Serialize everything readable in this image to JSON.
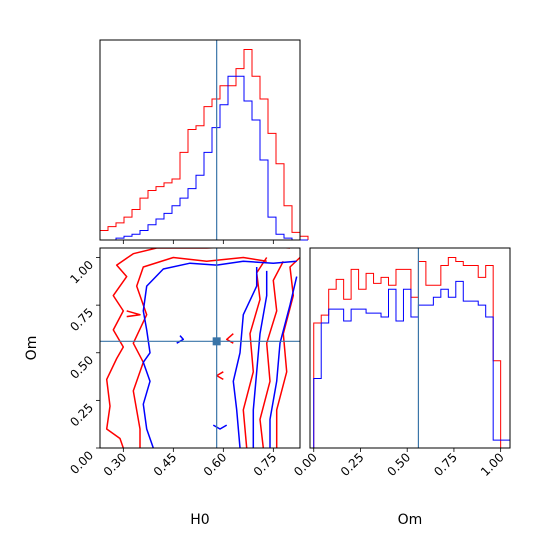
{
  "chart_data": [
    {
      "panel": "H0 marginal",
      "type": "histogram",
      "truth_value": 0.58,
      "series": [
        {
          "color": "#ff0000",
          "bin_edges": [
            0.23,
            0.254,
            0.278,
            0.302,
            0.326,
            0.35,
            0.374,
            0.398,
            0.422,
            0.446,
            0.47,
            0.494,
            0.518,
            0.542,
            0.566,
            0.59,
            0.614,
            0.638,
            0.662,
            0.686,
            0.71,
            0.734,
            0.758,
            0.782,
            0.806,
            0.83,
            0.854
          ],
          "counts": [
            0.05,
            0.07,
            0.09,
            0.12,
            0.16,
            0.22,
            0.26,
            0.28,
            0.3,
            0.32,
            0.46,
            0.58,
            0.6,
            0.7,
            0.74,
            0.81,
            0.81,
            0.9,
            1.0,
            0.86,
            0.74,
            0.56,
            0.4,
            0.18,
            0.04,
            0.02
          ]
        },
        {
          "color": "#0000ff",
          "bin_edges": [
            0.23,
            0.254,
            0.278,
            0.302,
            0.326,
            0.35,
            0.374,
            0.398,
            0.422,
            0.446,
            0.47,
            0.494,
            0.518,
            0.542,
            0.566,
            0.59,
            0.614,
            0.638,
            0.662,
            0.686,
            0.71,
            0.734,
            0.758,
            0.782,
            0.806,
            0.83,
            0.854
          ],
          "counts": [
            0.0,
            0.0,
            0.01,
            0.02,
            0.03,
            0.05,
            0.08,
            0.11,
            0.14,
            0.18,
            0.22,
            0.27,
            0.34,
            0.46,
            0.59,
            0.71,
            0.86,
            0.86,
            0.73,
            0.63,
            0.42,
            0.12,
            0.03,
            0.01,
            0.0,
            0.0
          ]
        }
      ]
    },
    {
      "panel": "H0 vs Om",
      "type": "contour",
      "xlabel": "H0",
      "ylabel": "Om",
      "xlim": [
        0.23,
        0.83
      ],
      "ylim": [
        0.0,
        1.05
      ],
      "x_ticks": [
        "0.30",
        "0.45",
        "0.60",
        "0.75"
      ],
      "x_tick_values": [
        0.3,
        0.45,
        0.6,
        0.75
      ],
      "y_ticks": [
        "0.00",
        "0.25",
        "0.50",
        "0.75",
        "1.00"
      ],
      "y_tick_values": [
        0.0,
        0.25,
        0.5,
        0.75,
        1.0
      ],
      "truth": [
        0.58,
        0.56
      ],
      "series": [
        {
          "color": "#ff0000",
          "contours": [
            [
              [
                0.3,
                0.0
              ],
              [
                0.29,
                0.05
              ],
              [
                0.25,
                0.1
              ],
              [
                0.26,
                0.22
              ],
              [
                0.25,
                0.36
              ],
              [
                0.28,
                0.47
              ],
              [
                0.3,
                0.53
              ],
              [
                0.27,
                0.62
              ],
              [
                0.3,
                0.72
              ],
              [
                0.27,
                0.8
              ],
              [
                0.31,
                0.9
              ],
              [
                0.28,
                0.96
              ],
              [
                0.33,
                1.02
              ],
              [
                0.4,
                1.05
              ],
              [
                0.55,
                1.05
              ],
              [
                0.7,
                1.06
              ],
              [
                0.8,
                1.05
              ]
            ],
            [
              [
                0.35,
                0.0
              ],
              [
                0.35,
                0.1
              ],
              [
                0.33,
                0.3
              ],
              [
                0.36,
                0.45
              ],
              [
                0.33,
                0.55
              ],
              [
                0.37,
                0.7
              ],
              [
                0.34,
                0.85
              ],
              [
                0.36,
                0.95
              ],
              [
                0.45,
                1.0
              ],
              [
                0.55,
                0.98
              ],
              [
                0.66,
                1.0
              ],
              [
                0.73,
                0.98
              ]
            ],
            [
              [
                0.67,
                0.0
              ],
              [
                0.66,
                0.2
              ],
              [
                0.69,
                0.4
              ],
              [
                0.68,
                0.6
              ],
              [
                0.71,
                0.78
              ],
              [
                0.7,
                0.92
              ],
              [
                0.73,
                1.0
              ]
            ],
            [
              [
                0.72,
                0.0
              ],
              [
                0.71,
                0.15
              ],
              [
                0.74,
                0.35
              ],
              [
                0.73,
                0.55
              ],
              [
                0.76,
                0.72
              ],
              [
                0.75,
                0.88
              ],
              [
                0.78,
                0.98
              ]
            ],
            [
              [
                0.76,
                0.0
              ],
              [
                0.76,
                0.2
              ],
              [
                0.79,
                0.4
              ],
              [
                0.78,
                0.6
              ],
              [
                0.81,
                0.8
              ],
              [
                0.8,
                0.95
              ],
              [
                0.83,
                1.0
              ]
            ],
            [
              [
                0.31,
                0.69
              ],
              [
                0.35,
                0.7
              ],
              [
                0.31,
                0.72
              ]
            ],
            [
              [
                0.63,
                0.6
              ],
              [
                0.61,
                0.57
              ],
              [
                0.63,
                0.55
              ]
            ],
            [
              [
                0.6,
                0.4
              ],
              [
                0.58,
                0.38
              ],
              [
                0.6,
                0.36
              ]
            ]
          ]
        },
        {
          "color": "#0000ff",
          "contours": [
            [
              [
                0.39,
                0.0
              ],
              [
                0.37,
                0.1
              ],
              [
                0.36,
                0.23
              ],
              [
                0.38,
                0.35
              ],
              [
                0.36,
                0.45
              ],
              [
                0.38,
                0.5
              ],
              [
                0.37,
                0.62
              ],
              [
                0.36,
                0.72
              ],
              [
                0.37,
                0.85
              ],
              [
                0.42,
                0.94
              ],
              [
                0.5,
                0.97
              ],
              [
                0.58,
                0.96
              ],
              [
                0.66,
                0.98
              ],
              [
                0.75,
                0.97
              ],
              [
                0.82,
                0.98
              ]
            ],
            [
              [
                0.65,
                0.0
              ],
              [
                0.64,
                0.2
              ],
              [
                0.63,
                0.35
              ],
              [
                0.65,
                0.5
              ],
              [
                0.66,
                0.7
              ],
              [
                0.7,
                0.85
              ],
              [
                0.7,
                0.95
              ]
            ],
            [
              [
                0.69,
                0.0
              ],
              [
                0.69,
                0.2
              ],
              [
                0.7,
                0.4
              ],
              [
                0.71,
                0.6
              ],
              [
                0.73,
                0.8
              ],
              [
                0.73,
                0.93
              ]
            ],
            [
              [
                0.74,
                0.0
              ],
              [
                0.74,
                0.15
              ],
              [
                0.76,
                0.35
              ],
              [
                0.77,
                0.55
              ],
              [
                0.8,
                0.75
              ],
              [
                0.82,
                0.9
              ]
            ],
            [
              [
                0.57,
                0.12
              ],
              [
                0.59,
                0.1
              ],
              [
                0.61,
                0.12
              ]
            ],
            [
              [
                0.46,
                0.55
              ],
              [
                0.48,
                0.57
              ],
              [
                0.47,
                0.59
              ]
            ]
          ]
        }
      ]
    },
    {
      "panel": "Om marginal",
      "type": "histogram",
      "xlabel": "Om",
      "xlim": [
        -0.02,
        1.05
      ],
      "x_ticks": [
        "0.00",
        "0.25",
        "0.50",
        "0.75",
        "1.00"
      ],
      "x_tick_values": [
        0.0,
        0.25,
        0.5,
        0.75,
        1.0
      ],
      "truth_value": 0.56,
      "series": [
        {
          "color": "#ff0000",
          "bin_edges": [
            0.0,
            0.04,
            0.08,
            0.12,
            0.16,
            0.2,
            0.24,
            0.28,
            0.32,
            0.36,
            0.4,
            0.44,
            0.48,
            0.52,
            0.56,
            0.6,
            0.64,
            0.68,
            0.72,
            0.76,
            0.8,
            0.84,
            0.88,
            0.92,
            0.96,
            1.0,
            1.05
          ],
          "counts": [
            0.63,
            0.67,
            0.8,
            0.85,
            0.75,
            0.9,
            0.8,
            0.88,
            0.83,
            0.86,
            0.82,
            0.9,
            0.9,
            0.76,
            0.94,
            0.82,
            0.82,
            0.92,
            0.96,
            0.94,
            0.92,
            0.92,
            0.86,
            0.92,
            0.44,
            0.0
          ]
        },
        {
          "color": "#0000ff",
          "bin_edges": [
            0.0,
            0.04,
            0.08,
            0.12,
            0.16,
            0.2,
            0.24,
            0.28,
            0.32,
            0.36,
            0.4,
            0.44,
            0.48,
            0.52,
            0.56,
            0.6,
            0.64,
            0.68,
            0.72,
            0.76,
            0.8,
            0.84,
            0.88,
            0.92,
            0.96,
            1.0,
            1.05
          ],
          "counts": [
            0.35,
            0.63,
            0.7,
            0.7,
            0.64,
            0.7,
            0.7,
            0.68,
            0.68,
            0.66,
            0.8,
            0.64,
            0.8,
            0.66,
            0.72,
            0.72,
            0.76,
            0.8,
            0.76,
            0.84,
            0.74,
            0.74,
            0.72,
            0.66,
            0.04,
            0.04
          ]
        }
      ]
    }
  ],
  "colors": {
    "red_series": "#ff0000",
    "blue_series": "#0000ff",
    "truth": "#3a75a8"
  }
}
